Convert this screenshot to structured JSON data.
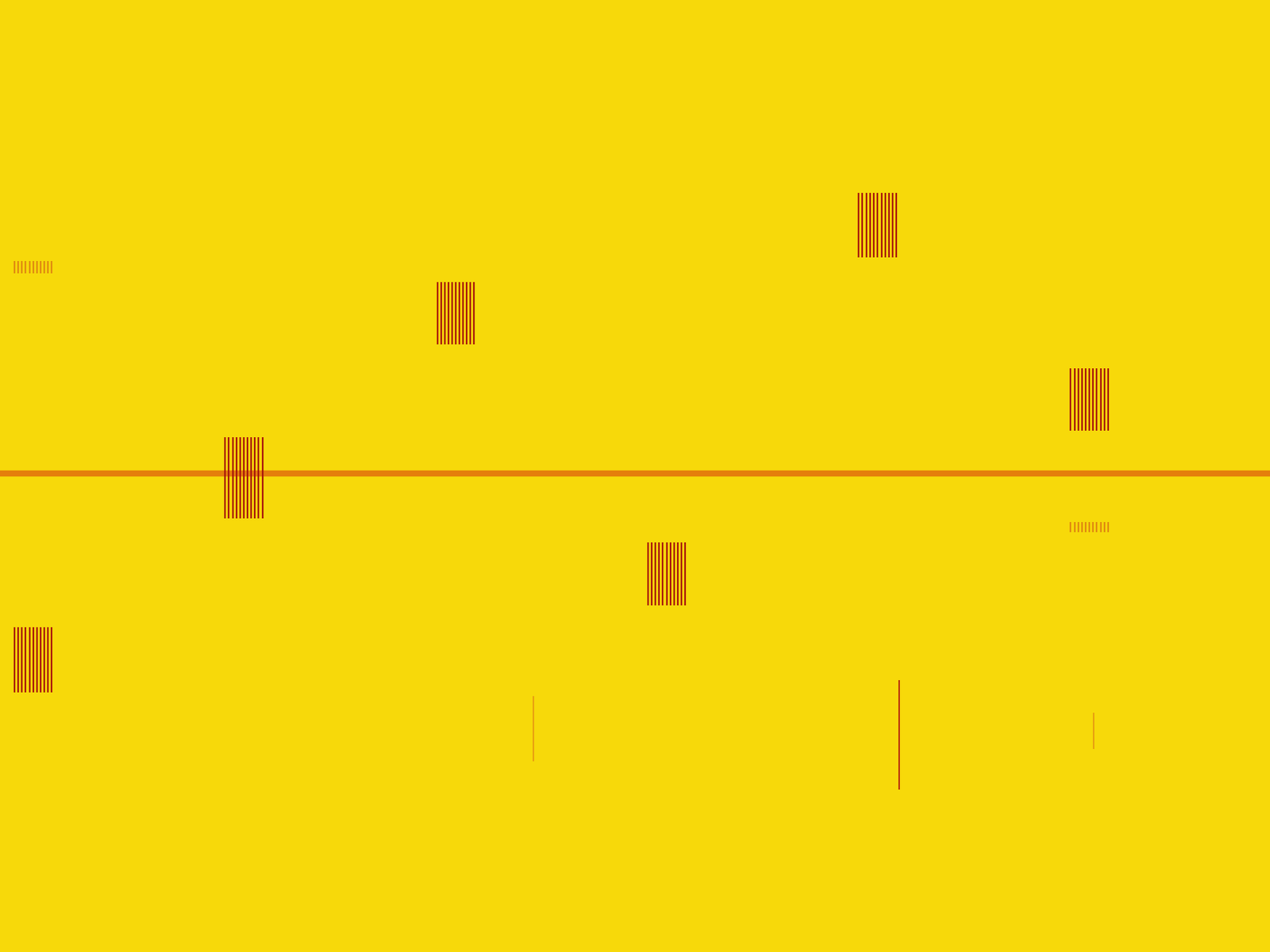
{
  "chart_data": {
    "type": "spectrogram",
    "tick_labels": false,
    "grid": false,
    "xlim": [
      0,
      1568
    ],
    "ylim": [
      1176,
      0
    ],
    "xticks": [],
    "yticks": [],
    "color": "#f7d90a",
    "carrier": {
      "y": 585,
      "x": [
        0,
        1568
      ],
      "color": "#e2700c"
    },
    "bursts": [
      {
        "x": [
          18,
          64
        ],
        "y": [
          775,
          855
        ],
        "stripes": 11,
        "color": "#a8160c"
      },
      {
        "x": [
          18,
          64
        ],
        "y": [
          322,
          338
        ],
        "stripes": 11,
        "color": "#e08a10"
      },
      {
        "x": [
          278,
          324
        ],
        "y": [
          540,
          640
        ],
        "stripes": 11,
        "color": "#a8160c"
      },
      {
        "x": [
          540,
          585
        ],
        "y": [
          348,
          425
        ],
        "stripes": 11,
        "color": "#a8160c"
      },
      {
        "x": [
          800,
          846
        ],
        "y": [
          670,
          748
        ],
        "stripes": 11,
        "color": "#a8160c"
      },
      {
        "x": [
          1060,
          1107
        ],
        "y": [
          238,
          318
        ],
        "stripes": 11,
        "color": "#a8160c"
      },
      {
        "x": [
          1322,
          1368
        ],
        "y": [
          455,
          532
        ],
        "stripes": 11,
        "color": "#a8160c"
      },
      {
        "x": [
          1322,
          1368
        ],
        "y": [
          645,
          657
        ],
        "stripes": 11,
        "color": "#e08a10"
      }
    ],
    "spikes": [
      {
        "x": 1110,
        "y": [
          840,
          975
        ],
        "color": "#b8300c"
      },
      {
        "x": 659,
        "y": [
          860,
          940
        ],
        "color": "#e8a010"
      },
      {
        "x": 1350,
        "y": [
          880,
          925
        ],
        "color": "#e8a010"
      }
    ]
  }
}
